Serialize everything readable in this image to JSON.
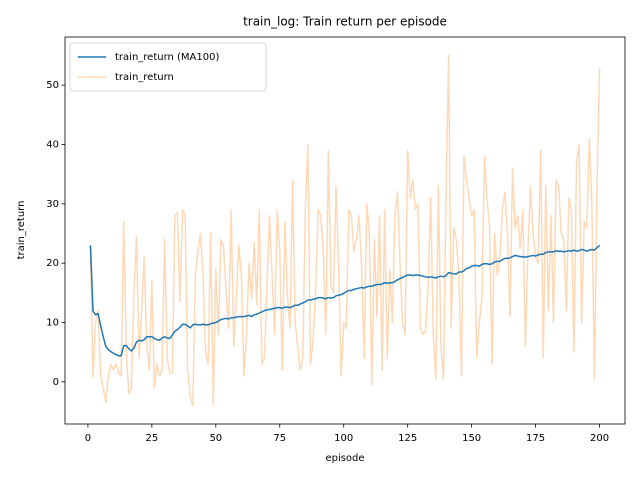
{
  "chart_data": {
    "type": "line",
    "title": "train_log: Train return per episode",
    "x_label": "episode",
    "y_label": "train_return",
    "x": [
      1,
      2,
      3,
      4,
      5,
      6,
      7,
      8,
      9,
      10,
      11,
      12,
      13,
      14,
      15,
      16,
      17,
      18,
      19,
      20,
      21,
      22,
      23,
      24,
      25,
      26,
      27,
      28,
      29,
      30,
      31,
      32,
      33,
      34,
      35,
      36,
      37,
      38,
      39,
      40,
      41,
      42,
      43,
      44,
      45,
      46,
      47,
      48,
      49,
      50,
      51,
      52,
      53,
      54,
      55,
      56,
      57,
      58,
      59,
      60,
      61,
      62,
      63,
      64,
      65,
      66,
      67,
      68,
      69,
      70,
      71,
      72,
      73,
      74,
      75,
      76,
      77,
      78,
      79,
      80,
      81,
      82,
      83,
      84,
      85,
      86,
      87,
      88,
      89,
      90,
      91,
      92,
      93,
      94,
      95,
      96,
      97,
      98,
      99,
      100,
      101,
      102,
      103,
      104,
      105,
      106,
      107,
      108,
      109,
      110,
      111,
      112,
      113,
      114,
      115,
      116,
      117,
      118,
      119,
      120,
      121,
      122,
      123,
      124,
      125,
      126,
      127,
      128,
      129,
      130,
      131,
      132,
      133,
      134,
      135,
      136,
      137,
      138,
      139,
      140,
      141,
      142,
      143,
      144,
      145,
      146,
      147,
      148,
      149,
      150,
      151,
      152,
      153,
      154,
      155,
      156,
      157,
      158,
      159,
      160,
      161,
      162,
      163,
      164,
      165,
      166,
      167,
      168,
      169,
      170,
      171,
      172,
      173,
      174,
      175,
      176,
      177,
      178,
      179,
      180,
      181,
      182,
      183,
      184,
      185,
      186,
      187,
      188,
      189,
      190,
      191,
      192,
      193,
      194,
      195,
      196,
      197,
      198,
      199,
      200
    ],
    "series": [
      {
        "name": "train_return (MA100)",
        "color": "#1f77b4",
        "alpha": 1,
        "values": [
          23,
          11.9,
          11.3,
          11.5,
          9.4,
          7.6,
          6,
          5.4,
          5.1,
          4.8,
          4.6,
          4.4,
          4.4,
          6.1,
          6.1,
          5.6,
          5.2,
          5.7,
          6.7,
          7,
          6.9,
          7.1,
          7.6,
          7.6,
          7.6,
          7.3,
          7.1,
          7,
          7.4,
          7.6,
          7.4,
          7.3,
          7.9,
          8.5,
          8.8,
          9.2,
          9.7,
          9.7,
          9.4,
          9.1,
          9.6,
          9.7,
          9.6,
          9.6,
          9.7,
          9.6,
          9.6,
          9.8,
          9.9,
          10,
          10.2,
          10.5,
          10.6,
          10.7,
          10.6,
          10.8,
          10.8,
          10.9,
          11,
          11,
          11,
          11.1,
          11.2,
          11,
          11.3,
          11.4,
          11.6,
          11.8,
          12,
          12.1,
          12.2,
          12.3,
          12.4,
          12.5,
          12.5,
          12.4,
          12.6,
          12.6,
          12.5,
          12.7,
          12.9,
          12.9,
          13.1,
          13.3,
          13.5,
          13.8,
          13.8,
          13.9,
          14,
          14.2,
          14.2,
          14.1,
          14,
          14.2,
          14.1,
          14.2,
          14.5,
          14.6,
          14.7,
          14.9,
          15.2,
          15.4,
          15.4,
          15.6,
          15.7,
          15.8,
          15.9,
          15.8,
          16,
          16.1,
          16.1,
          16.3,
          16.4,
          16.4,
          16.5,
          16.7,
          16.6,
          16.7,
          16.7,
          16.9,
          17.2,
          17.4,
          17.6,
          17.8,
          18,
          18,
          17.9,
          18,
          18,
          17.9,
          17.8,
          17.7,
          17.6,
          17.7,
          17.6,
          17.5,
          17.7,
          17.8,
          17.7,
          17.9,
          18.4,
          18.3,
          18.2,
          18.2,
          18.5,
          18.5,
          18.7,
          19.1,
          19.2,
          19.5,
          19.6,
          19.6,
          19.5,
          19.8,
          19.9,
          19.9,
          19.8,
          19.9,
          20.2,
          20.3,
          20.3,
          20.6,
          20.8,
          20.8,
          20.9,
          21.1,
          21.3,
          21.2,
          21.1,
          21.1,
          21,
          21.1,
          21.2,
          21.3,
          21.2,
          21.4,
          21.5,
          21.5,
          21.8,
          21.9,
          21.9,
          21.9,
          22.1,
          22,
          22,
          21.9,
          22,
          22.1,
          22,
          22.2,
          22,
          22.1,
          22.3,
          22.2,
          22,
          22.2,
          22.3,
          22.2,
          22.6,
          23
        ]
      },
      {
        "name": "train_return",
        "color": "#ff7f0e",
        "alpha": 0.3,
        "values": [
          23,
          0.8,
          10,
          12,
          1,
          -1,
          -3.5,
          1,
          3,
          2,
          3,
          1.5,
          1,
          27,
          5,
          -2,
          -1,
          15,
          24.5,
          4,
          12,
          21,
          6,
          2,
          17,
          -1,
          3,
          1,
          2,
          24,
          4,
          1.5,
          1.5,
          28,
          28.5,
          13.5,
          29,
          28,
          2,
          -2.5,
          -4,
          18,
          22,
          25,
          18,
          5,
          3,
          25,
          -4,
          19,
          8,
          24,
          23,
          15,
          9,
          29,
          6,
          14,
          23,
          18,
          1,
          8,
          20,
          14,
          23.5,
          13,
          29,
          3,
          4,
          16,
          28,
          18,
          8,
          29,
          22,
          2,
          27,
          14.5,
          9,
          34,
          10,
          6,
          2,
          4,
          29,
          40,
          3,
          7,
          15,
          29,
          28,
          22,
          8,
          39,
          16,
          15,
          33,
          20,
          1,
          10,
          9,
          29,
          28,
          22,
          24,
          28,
          19,
          4,
          30,
          25,
          -0.5,
          24,
          11,
          28,
          2,
          29,
          4,
          19,
          10,
          28,
          32,
          20,
          10,
          8,
          39,
          31,
          34,
          29,
          30,
          9,
          8,
          8.5,
          16,
          31,
          8,
          0.5,
          33,
          6,
          0.5,
          32,
          55,
          9,
          26,
          24,
          18,
          1,
          38,
          34,
          31,
          28,
          29,
          4,
          10,
          14,
          38,
          31,
          26,
          3,
          25,
          18,
          20.5,
          29,
          32,
          25,
          11,
          36,
          26,
          28,
          22.5,
          29,
          6,
          22,
          33,
          25,
          21,
          20,
          39,
          4,
          33,
          12,
          28,
          10,
          34,
          33,
          25,
          24,
          12,
          31,
          29,
          5,
          37,
          40,
          10,
          27,
          26,
          41,
          30,
          0.5,
          33,
          53
        ]
      }
    ],
    "xlim": [
      -8.95,
      209.95
    ],
    "ylim": [
      -7.1,
      58.1
    ],
    "xticks": [
      0,
      25,
      50,
      75,
      100,
      125,
      150,
      175,
      200
    ],
    "yticks": [
      0,
      10,
      20,
      30,
      40,
      50
    ],
    "grid": false,
    "legend": "upper left"
  }
}
